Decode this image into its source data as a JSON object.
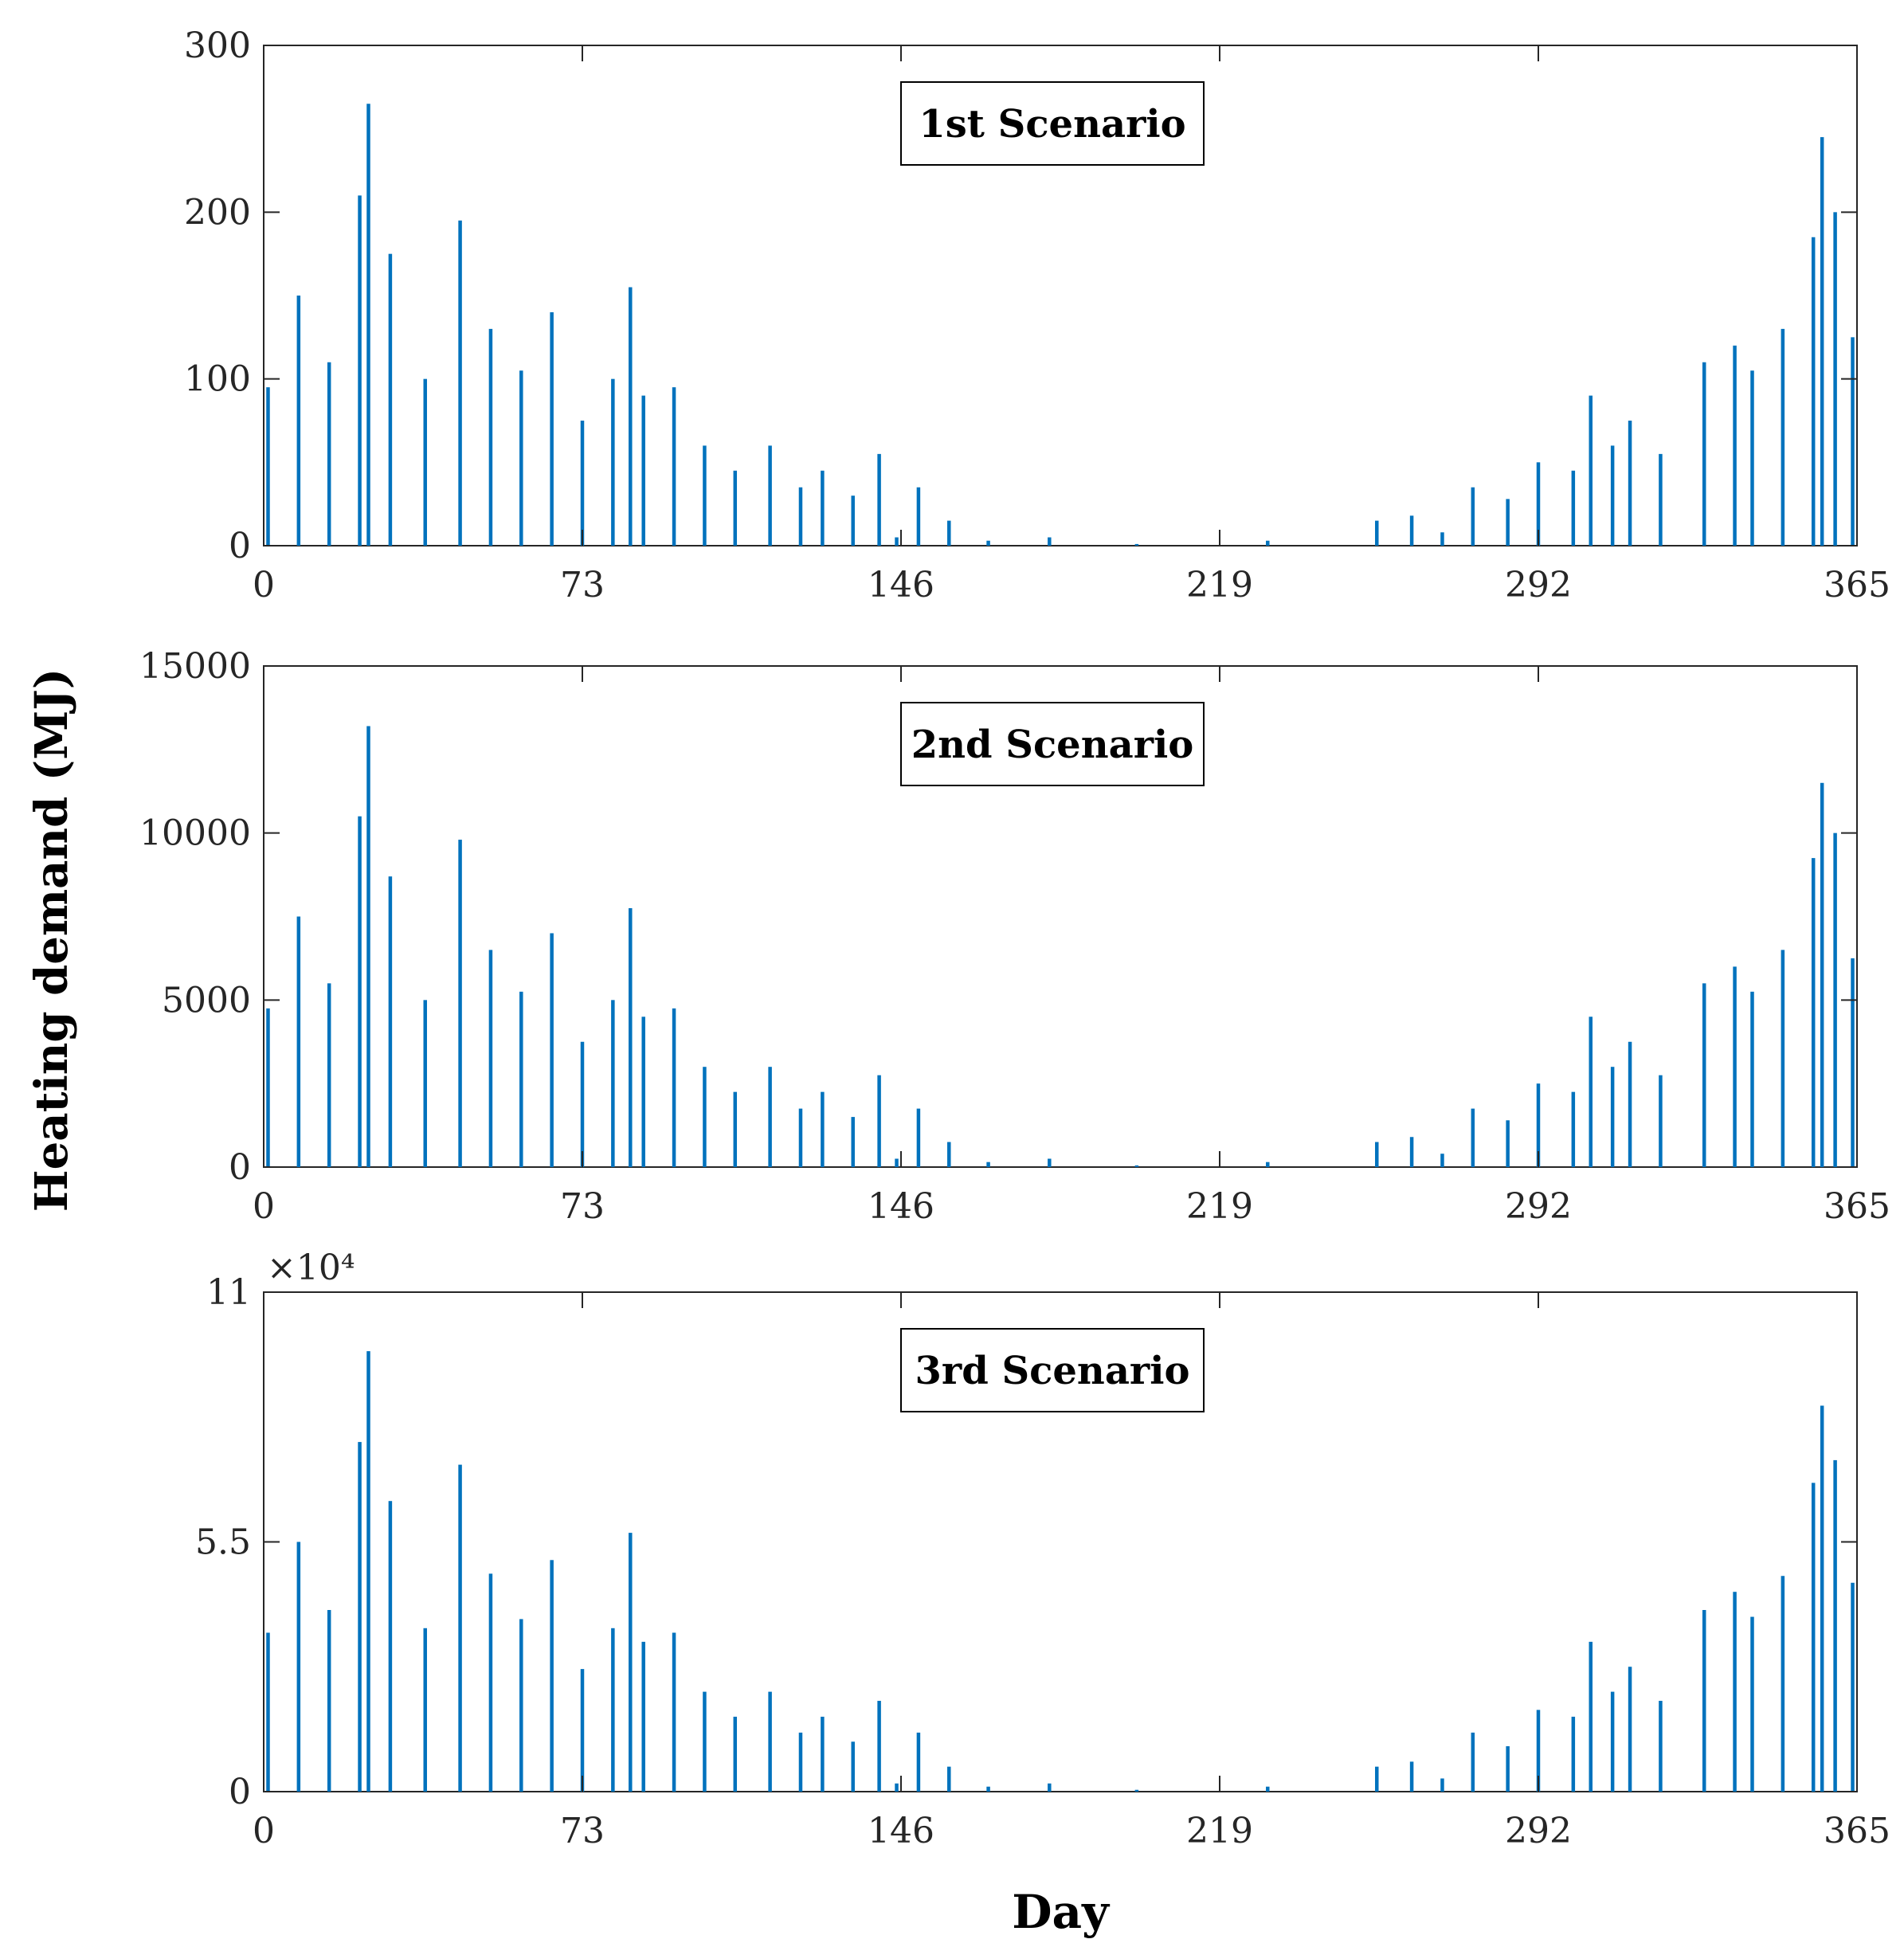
{
  "figure": {
    "ylabel": "Heating demand (MJ)",
    "xlabel": "Day"
  },
  "chart_data": [
    {
      "type": "bar",
      "title": "1st Scenario",
      "xlabel": "Day",
      "ylabel": "Heating demand (MJ)",
      "xlim": [
        0,
        365
      ],
      "ylim": [
        0,
        300
      ],
      "xticks": [
        0,
        73,
        146,
        219,
        292,
        365
      ],
      "xtick_labels": [
        "0",
        "73",
        "146",
        "219",
        "292",
        "365"
      ],
      "yticks": [
        0,
        100,
        200,
        300
      ],
      "ytick_labels": [
        "0",
        "100",
        "200",
        "300"
      ],
      "exponent_label": "",
      "bar_color": "#0072BD",
      "x": [
        1,
        8,
        15,
        22,
        24,
        29,
        37,
        45,
        52,
        59,
        66,
        73,
        80,
        84,
        87,
        94,
        101,
        108,
        116,
        123,
        128,
        135,
        141,
        145,
        150,
        157,
        166,
        180,
        200,
        230,
        255,
        263,
        270,
        277,
        285,
        292,
        300,
        304,
        309,
        313,
        320,
        330,
        337,
        341,
        348,
        355,
        357,
        360,
        364
      ],
      "values": [
        95,
        150,
        110,
        210,
        265,
        175,
        100,
        195,
        130,
        105,
        140,
        75,
        100,
        155,
        90,
        95,
        60,
        45,
        60,
        35,
        45,
        30,
        55,
        5,
        35,
        15,
        3,
        5,
        1,
        3,
        15,
        18,
        8,
        35,
        28,
        50,
        45,
        90,
        60,
        75,
        55,
        110,
        120,
        105,
        130,
        185,
        245,
        200,
        125
      ]
    },
    {
      "type": "bar",
      "title": "2nd Scenario",
      "xlabel": "Day",
      "ylabel": "Heating demand (MJ)",
      "xlim": [
        0,
        365
      ],
      "ylim": [
        0,
        15000
      ],
      "xticks": [
        0,
        73,
        146,
        219,
        292,
        365
      ],
      "xtick_labels": [
        "0",
        "73",
        "146",
        "219",
        "292",
        "365"
      ],
      "yticks": [
        0,
        5000,
        10000,
        15000
      ],
      "ytick_labels": [
        "0",
        "5000",
        "10000",
        "15000"
      ],
      "exponent_label": "",
      "bar_color": "#0072BD",
      "x": [
        1,
        8,
        15,
        22,
        24,
        29,
        37,
        45,
        52,
        59,
        66,
        73,
        80,
        84,
        87,
        94,
        101,
        108,
        116,
        123,
        128,
        135,
        141,
        145,
        150,
        157,
        166,
        180,
        200,
        230,
        255,
        263,
        270,
        277,
        285,
        292,
        300,
        304,
        309,
        313,
        320,
        330,
        337,
        341,
        348,
        355,
        357,
        360,
        364
      ],
      "values": [
        4750,
        7500,
        5500,
        10500,
        13200,
        8700,
        5000,
        9800,
        6500,
        5250,
        7000,
        3750,
        5000,
        7750,
        4500,
        4750,
        3000,
        2250,
        3000,
        1750,
        2250,
        1500,
        2750,
        250,
        1750,
        750,
        150,
        250,
        50,
        150,
        750,
        900,
        400,
        1750,
        1400,
        2500,
        2250,
        4500,
        3000,
        3750,
        2750,
        5500,
        6000,
        5250,
        6500,
        9250,
        11500,
        10000,
        6250
      ]
    },
    {
      "type": "bar",
      "title": "3rd Scenario",
      "xlabel": "Day",
      "ylabel": "Heating demand (MJ)",
      "xlim": [
        0,
        365
      ],
      "ylim": [
        0,
        110000
      ],
      "xticks": [
        0,
        73,
        146,
        219,
        292,
        365
      ],
      "xtick_labels": [
        "0",
        "73",
        "146",
        "219",
        "292",
        "365"
      ],
      "yticks": [
        0,
        55000,
        110000
      ],
      "ytick_labels": [
        "0",
        "5.5",
        "11"
      ],
      "exponent_label": "×10⁴",
      "bar_color": "#0072BD",
      "x": [
        1,
        8,
        15,
        22,
        24,
        29,
        37,
        45,
        52,
        59,
        66,
        73,
        80,
        84,
        87,
        94,
        101,
        108,
        116,
        123,
        128,
        135,
        141,
        145,
        150,
        157,
        166,
        180,
        200,
        230,
        255,
        263,
        270,
        277,
        285,
        292,
        300,
        304,
        309,
        313,
        320,
        330,
        337,
        341,
        348,
        355,
        357,
        360,
        364
      ],
      "values": [
        35000,
        55000,
        40000,
        77000,
        97000,
        64000,
        36000,
        72000,
        48000,
        38000,
        51000,
        27000,
        36000,
        57000,
        33000,
        35000,
        22000,
        16500,
        22000,
        13000,
        16500,
        11000,
        20000,
        1800,
        13000,
        5500,
        1100,
        1800,
        400,
        1100,
        5500,
        6600,
        2900,
        13000,
        10000,
        18000,
        16500,
        33000,
        22000,
        27500,
        20000,
        40000,
        44000,
        38500,
        47500,
        68000,
        85000,
        73000,
        46000
      ]
    }
  ]
}
